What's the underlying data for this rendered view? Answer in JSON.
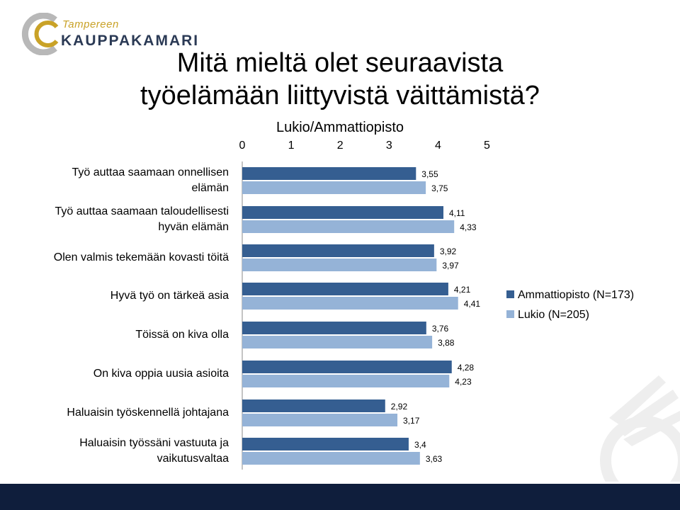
{
  "logo": {
    "line1": "Tampereen",
    "line2": "KAUPPAKAMARI"
  },
  "title": [
    "Mitä mieltä olet seuraavista",
    "työelämään liittyvistä väittämistä?"
  ],
  "colors": {
    "ammattiopisto": "#355e91",
    "lukio": "#95b3d7"
  },
  "chart_data": {
    "type": "bar",
    "orientation": "horizontal",
    "title": "Lukio/Ammattiopisto",
    "xlim": [
      0,
      5
    ],
    "xticks": [
      "0",
      "1",
      "2",
      "3",
      "4",
      "5"
    ],
    "categories": [
      [
        "Työ auttaa saamaan onnellisen",
        "elämän"
      ],
      [
        "Työ auttaa saamaan taloudellisesti",
        "hyvän elämän"
      ],
      [
        "Olen valmis tekemään kovasti töitä"
      ],
      [
        "Hyvä työ on tärkeä asia"
      ],
      [
        "Töissä on kiva olla"
      ],
      [
        "On kiva oppia uusia asioita"
      ],
      [
        "Haluaisin työskennellä johtajana"
      ],
      [
        "Haluaisin työssäni vastuuta ja",
        "vaikutusvaltaa"
      ]
    ],
    "series": [
      {
        "name": "Ammattiopisto (N=173)",
        "color": "#355e91",
        "values": [
          3.55,
          4.11,
          3.92,
          4.21,
          3.76,
          4.28,
          2.92,
          3.4
        ],
        "labels": [
          "3,55",
          "4,11",
          "3,92",
          "4,21",
          "3,76",
          "4,28",
          "2,92",
          "3,4"
        ]
      },
      {
        "name": "Lukio (N=205)",
        "color": "#95b3d7",
        "values": [
          3.75,
          4.33,
          3.97,
          4.41,
          3.88,
          4.23,
          3.17,
          3.63
        ],
        "labels": [
          "3,75",
          "4,33",
          "3,97",
          "4,41",
          "3,88",
          "4,23",
          "3,17",
          "3,63"
        ]
      }
    ],
    "legend_position": "right",
    "grid": false
  }
}
